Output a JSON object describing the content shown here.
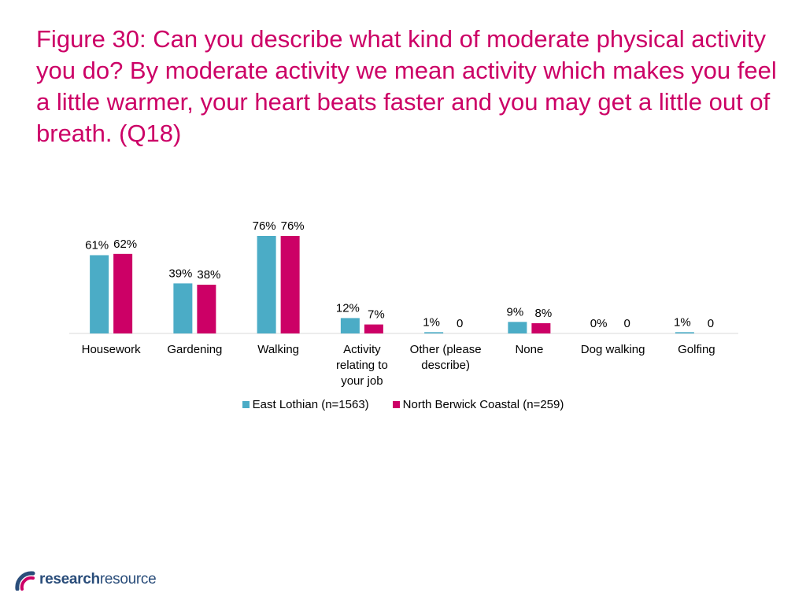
{
  "title": "Figure 30: Can you describe what kind of moderate physical activity you do? By moderate activity we mean activity which makes you feel a little warmer, your heart beats faster and you may get a little out of breath. (Q18)",
  "colors": {
    "title": "#cc0066",
    "series1": "#4bacc6",
    "series2": "#cc0066",
    "axis": "#d9d9d9"
  },
  "chart_data": {
    "type": "bar",
    "categories": [
      [
        "Housework"
      ],
      [
        "Gardening"
      ],
      [
        "Walking"
      ],
      [
        "Activity",
        "relating to",
        "your job"
      ],
      [
        "Other (please",
        "describe)"
      ],
      [
        "None"
      ],
      [
        "Dog walking"
      ],
      [
        "Golfing"
      ]
    ],
    "series": [
      {
        "name": "East Lothian (n=1563)",
        "values": [
          61,
          39,
          76,
          12,
          1,
          9,
          0,
          1
        ],
        "labels": [
          "61%",
          "39%",
          "76%",
          "12%",
          "1%",
          "9%",
          "0%",
          "1%"
        ]
      },
      {
        "name": "North Berwick Coastal (n=259)",
        "values": [
          62,
          38,
          76,
          7,
          0,
          8,
          0,
          0
        ],
        "labels": [
          "62%",
          "38%",
          "76%",
          "7%",
          "0",
          "8%",
          "0",
          "0"
        ]
      }
    ],
    "ylim": [
      0,
      76
    ],
    "grid": false,
    "legend_position": "bottom"
  },
  "logo": {
    "bold": "research",
    "light": "resource"
  }
}
